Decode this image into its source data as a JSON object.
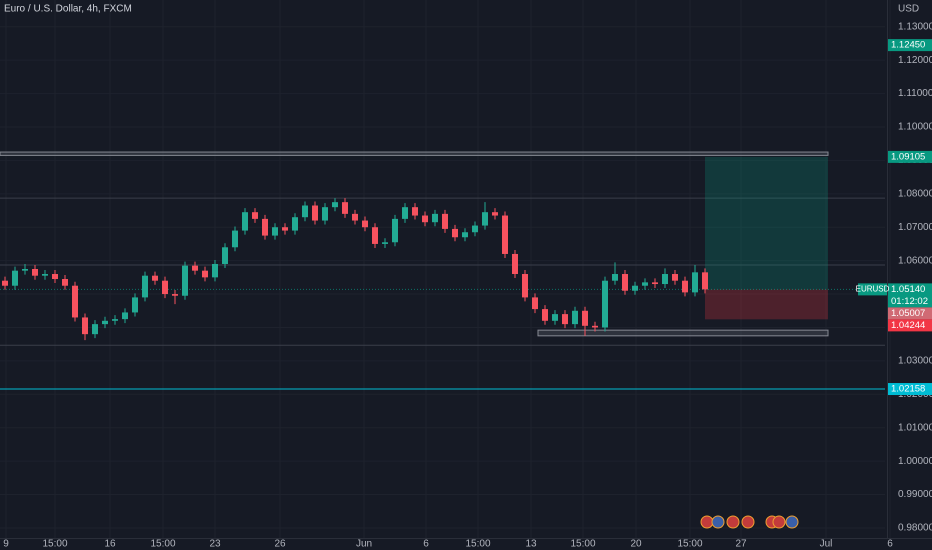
{
  "chart_data": {
    "type": "candlestick",
    "title": "Euro / U.S. Dollar, 4h, FXCM",
    "currency": "USD",
    "symbol": "EURUSD",
    "countdown": "01:12:02",
    "up_color": "#22ab94",
    "down_color": "#f7525f",
    "grid": true,
    "open": [
      1.054,
      1.0525,
      1.057,
      1.0575,
      1.0555,
      1.056,
      1.0545,
      1.0525,
      1.043,
      1.038,
      1.041,
      1.042,
      1.0425,
      1.0445,
      1.049,
      1.0555,
      1.054,
      1.05,
      1.0495,
      1.0585,
      1.057,
      1.055,
      1.059,
      1.064,
      1.069,
      1.0745,
      1.0725,
      1.0675,
      1.07,
      1.069,
      1.073,
      1.0765,
      1.072,
      1.076,
      1.0775,
      1.074,
      1.072,
      1.07,
      1.065,
      1.0655,
      1.0725,
      1.076,
      1.0735,
      1.0715,
      1.074,
      1.0695,
      1.067,
      1.0685,
      1.0705,
      1.0745,
      1.0735,
      1.062,
      1.056,
      1.049,
      1.0455,
      1.042,
      1.044,
      1.041,
      1.045,
      1.0405,
      1.04,
      1.054,
      1.056,
      1.051,
      1.0525,
      1.0535,
      1.053,
      1.056,
      1.054,
      1.0505,
      1.0565
    ],
    "high": [
      1.0552,
      1.0582,
      1.059,
      1.0587,
      1.0572,
      1.0572,
      1.0557,
      1.0537,
      1.0442,
      1.0422,
      1.0432,
      1.0437,
      1.0457,
      1.0502,
      1.0567,
      1.0567,
      1.0552,
      1.0512,
      1.0597,
      1.0597,
      1.0582,
      1.0602,
      1.0652,
      1.0702,
      1.0757,
      1.0757,
      1.0737,
      1.0712,
      1.0712,
      1.0742,
      1.0777,
      1.0777,
      1.0772,
      1.0787,
      1.0787,
      1.0752,
      1.0732,
      1.0712,
      1.0667,
      1.0737,
      1.0772,
      1.0772,
      1.0747,
      1.0752,
      1.0752,
      1.0707,
      1.0697,
      1.0717,
      1.0775,
      1.0757,
      1.0747,
      1.0632,
      1.0572,
      1.0502,
      1.0467,
      1.0452,
      1.0452,
      1.0462,
      1.0462,
      1.0417,
      1.0552,
      1.0595,
      1.0572,
      1.0537,
      1.0547,
      1.0547,
      1.0577,
      1.0572,
      1.0552,
      1.0587,
      1.0577
    ],
    "low": [
      1.0513,
      1.0513,
      1.0558,
      1.0543,
      1.0543,
      1.0533,
      1.0513,
      1.0418,
      1.0362,
      1.0368,
      1.0398,
      1.0408,
      1.0413,
      1.0433,
      1.0478,
      1.0528,
      1.0488,
      1.047,
      1.0483,
      1.0558,
      1.0538,
      1.0538,
      1.0578,
      1.0628,
      1.0678,
      1.0713,
      1.0663,
      1.0663,
      1.0678,
      1.0678,
      1.0718,
      1.0708,
      1.0708,
      1.0748,
      1.0728,
      1.0708,
      1.0688,
      1.0638,
      1.0638,
      1.0643,
      1.0713,
      1.0723,
      1.0703,
      1.0703,
      1.0683,
      1.0658,
      1.0658,
      1.0673,
      1.0693,
      1.0723,
      1.0608,
      1.0548,
      1.0478,
      1.0443,
      1.0408,
      1.0408,
      1.0398,
      1.0398,
      1.0375,
      1.0388,
      1.0388,
      1.0528,
      1.0498,
      1.0498,
      1.0513,
      1.0518,
      1.0518,
      1.0528,
      1.0493,
      1.0493,
      1.0502
    ],
    "close": [
      1.0525,
      1.057,
      1.0575,
      1.0555,
      1.056,
      1.0545,
      1.0525,
      1.043,
      1.038,
      1.041,
      1.042,
      1.0425,
      1.0445,
      1.049,
      1.0555,
      1.054,
      1.05,
      1.0495,
      1.0585,
      1.057,
      1.055,
      1.059,
      1.064,
      1.069,
      1.0745,
      1.0725,
      1.0675,
      1.07,
      1.069,
      1.073,
      1.0765,
      1.072,
      1.076,
      1.0775,
      1.074,
      1.072,
      1.07,
      1.065,
      1.0655,
      1.0725,
      1.076,
      1.0735,
      1.0715,
      1.074,
      1.0695,
      1.067,
      1.0685,
      1.0705,
      1.0745,
      1.0735,
      1.062,
      1.056,
      1.049,
      1.0455,
      1.042,
      1.044,
      1.041,
      1.045,
      1.0405,
      1.04,
      1.054,
      1.056,
      1.051,
      1.0525,
      1.0535,
      1.053,
      1.056,
      1.054,
      1.0505,
      1.0565,
      1.0514
    ],
    "xlim": [
      -0.5,
      88
    ],
    "xticks": [
      {
        "value": 0.1,
        "label": "9"
      },
      {
        "value": 5,
        "label": "15:00"
      },
      {
        "value": 10.5,
        "label": "16"
      },
      {
        "value": 15.8,
        "label": "15:00"
      },
      {
        "value": 21,
        "label": "23"
      },
      {
        "value": 27.5,
        "label": "26"
      },
      {
        "value": 35.9,
        "label": "Jun"
      },
      {
        "value": 42.1,
        "label": "6"
      },
      {
        "value": 47.3,
        "label": "15:00"
      },
      {
        "value": 52.6,
        "label": "13"
      },
      {
        "value": 57.8,
        "label": "15:00"
      },
      {
        "value": 63.1,
        "label": "20"
      },
      {
        "value": 68.5,
        "label": "15:00"
      },
      {
        "value": 73.6,
        "label": "27"
      },
      {
        "value": 82.1,
        "label": "Jul"
      },
      {
        "value": 88.5,
        "label": "6"
      }
    ],
    "ylim": [
      0.977,
      1.138
    ],
    "yticks": [
      {
        "value": 1.13,
        "label": "1.13000"
      },
      {
        "value": 1.12,
        "label": "1.12000"
      },
      {
        "value": 1.11,
        "label": "1.11000"
      },
      {
        "value": 1.1,
        "label": "1.10000"
      },
      {
        "value": 1.09,
        "label": "1.09000"
      },
      {
        "value": 1.08,
        "label": "1.08000"
      },
      {
        "value": 1.07,
        "label": "1.07000"
      },
      {
        "value": 1.06,
        "label": "1.06000"
      },
      {
        "value": 1.05,
        "label": "1.05000"
      },
      {
        "value": 1.04,
        "label": "1.04000"
      },
      {
        "value": 1.03,
        "label": "1.03000"
      },
      {
        "value": 1.02,
        "label": "1.02000"
      },
      {
        "value": 1.01,
        "label": "1.01000"
      },
      {
        "value": 1.0,
        "label": "1.00000"
      },
      {
        "value": 0.99,
        "label": "0.99000"
      },
      {
        "value": 0.98,
        "label": "0.98000"
      }
    ],
    "price_tags": [
      {
        "value": 1.1245,
        "label": "1.12450",
        "color": "#089981"
      },
      {
        "value": 1.09105,
        "label": "1.09105",
        "color": "#089981"
      },
      {
        "value": 1.0514,
        "label": "1.05140",
        "color": "#089981"
      },
      {
        "value": 1.05007,
        "label": "1.05007",
        "color": "#d06a74"
      },
      {
        "value": 1.04244,
        "label": "1.04244",
        "color": "#f23645"
      },
      {
        "value": 1.02158,
        "label": "1.02158",
        "color": "#00bcd4"
      }
    ],
    "levels": [
      1.0787,
      1.0587,
      1.0347
    ],
    "zones": [
      {
        "x": [
          -0.5,
          82.3
        ],
        "y": [
          1.0915,
          1.0925
        ]
      },
      {
        "x": [
          53.3,
          82.3
        ],
        "y": [
          1.0375,
          1.0392
        ]
      }
    ],
    "position_x": [
      70,
      82.3
    ]
  }
}
